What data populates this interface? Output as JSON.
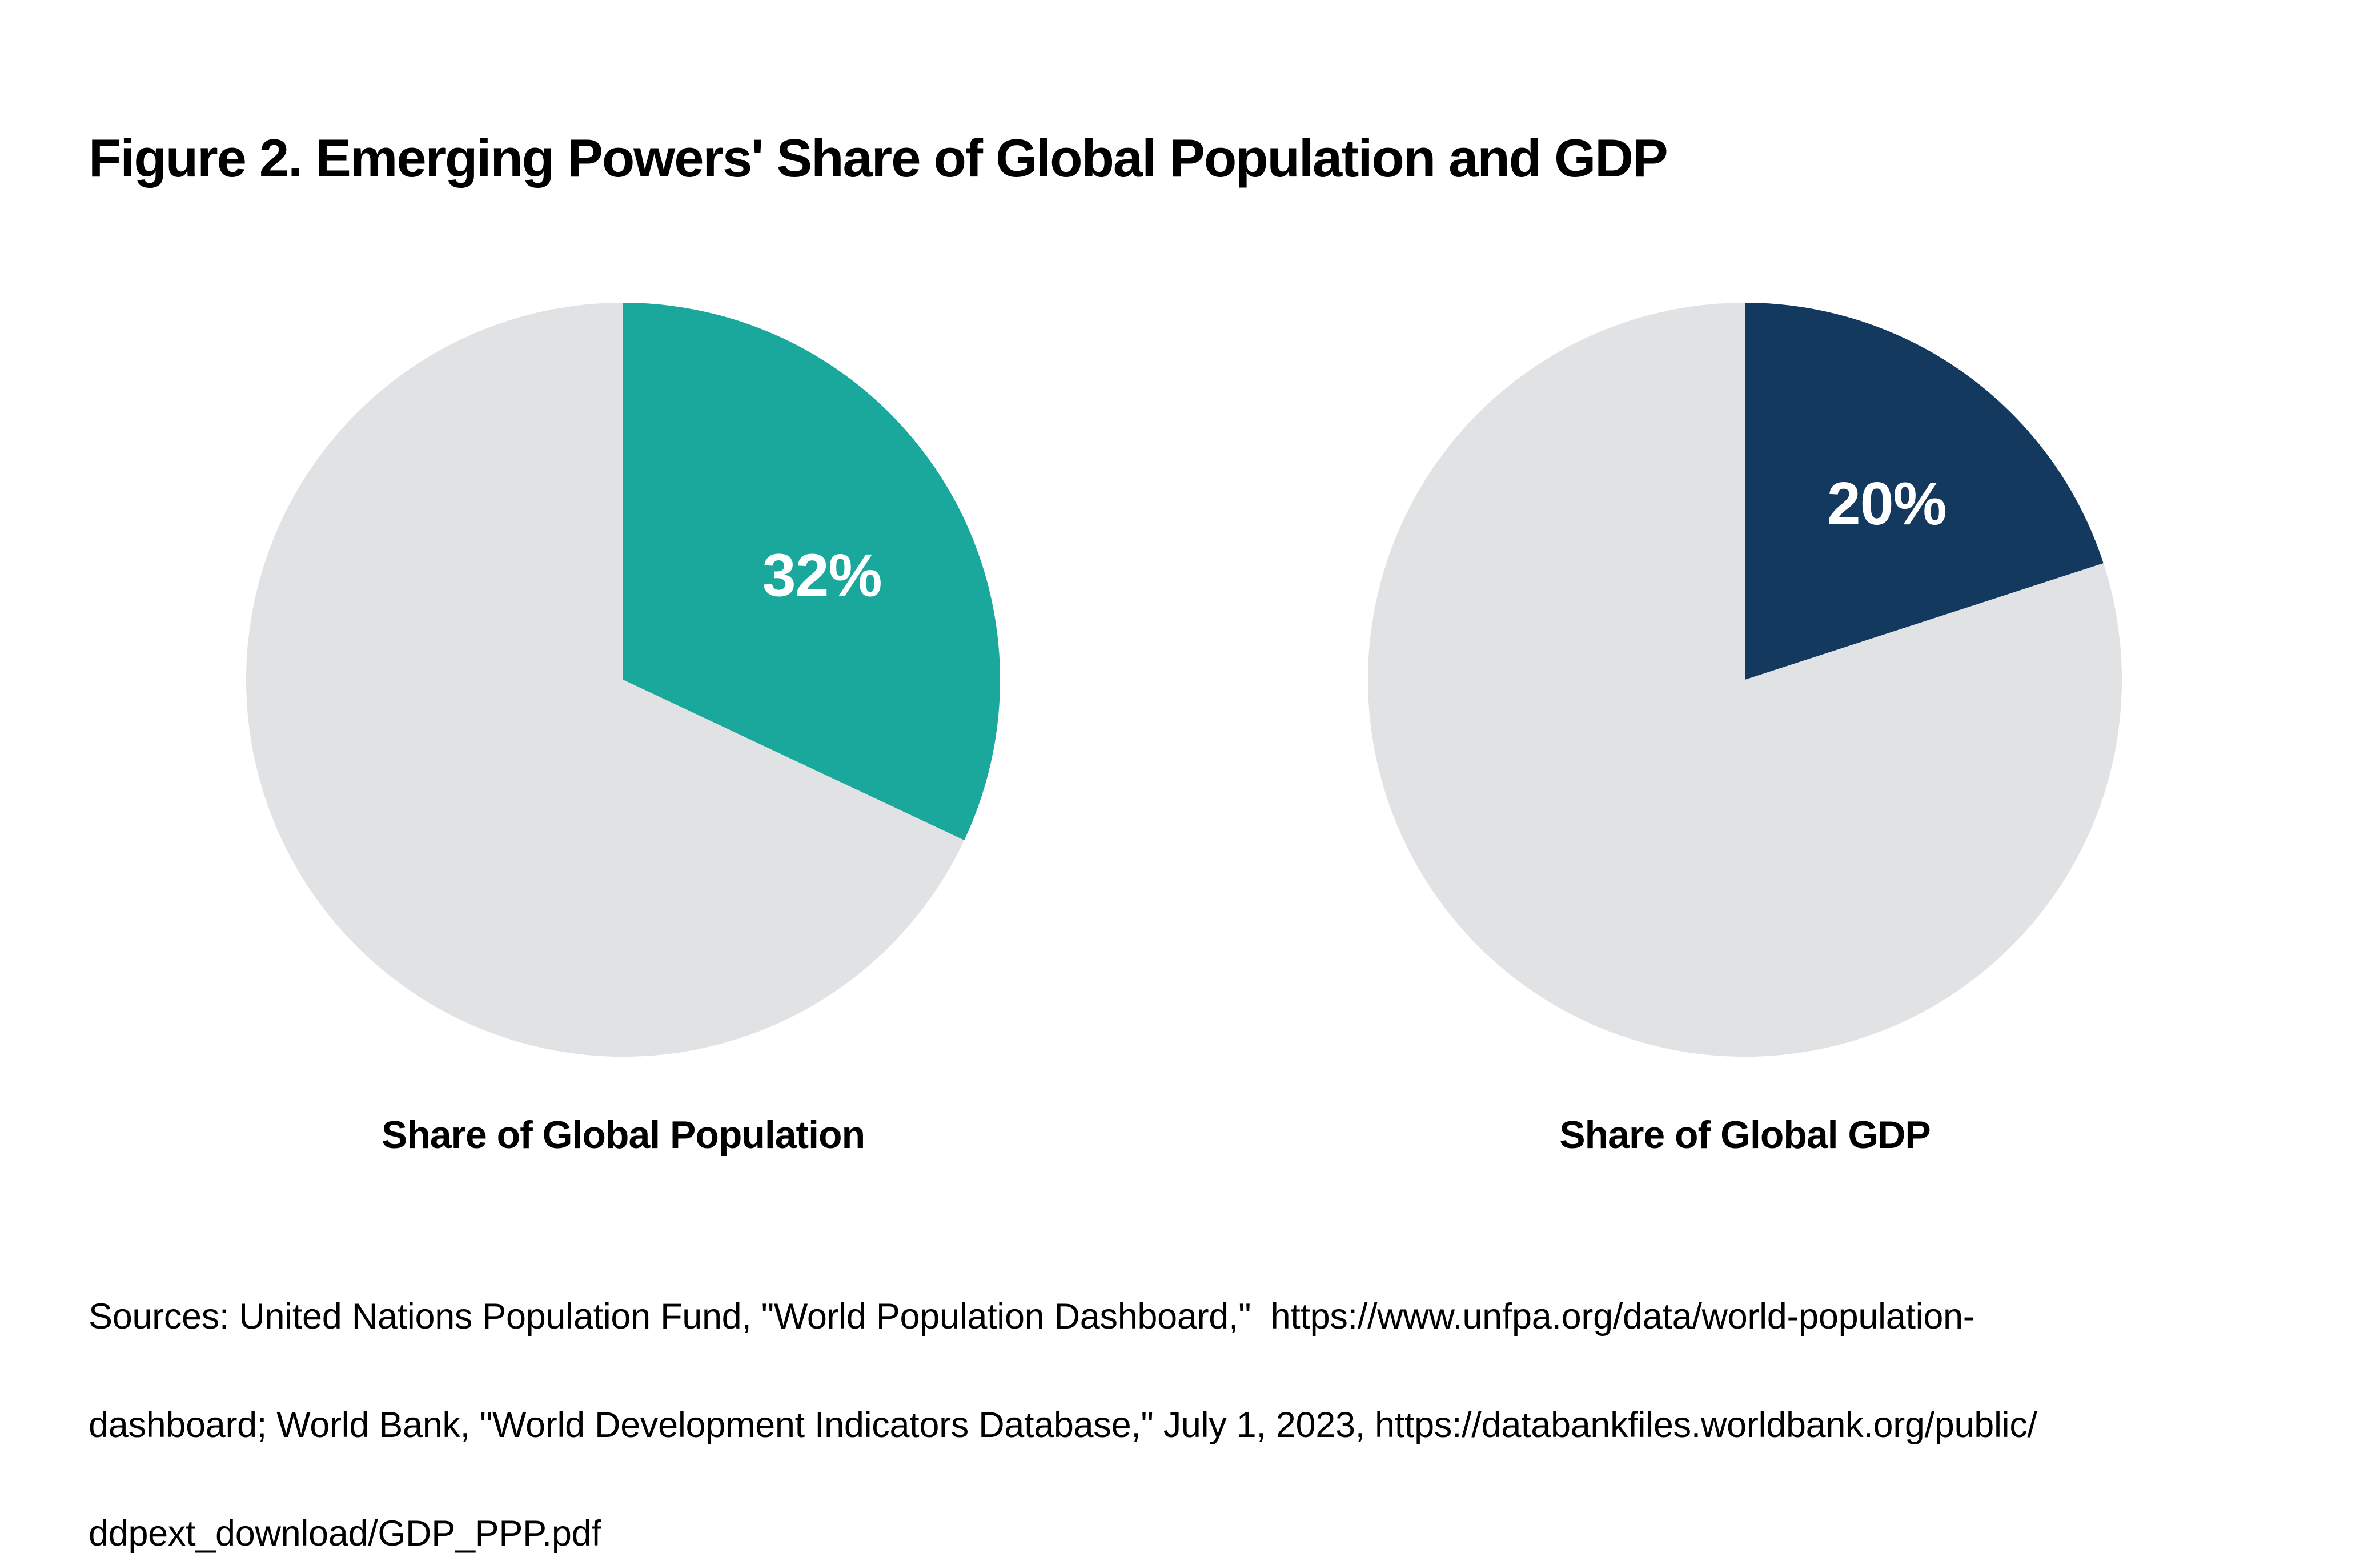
{
  "title": "Figure 2. Emerging Powers' Share of Global Population and GDP",
  "colors": {
    "highlight_teal": "#1AA89C",
    "highlight_navy": "#14395F",
    "remainder_gray": "#E1E2E3",
    "slice_label_white": "#FFFFFF",
    "text_black": "#000000",
    "background": "#FFFFFF"
  },
  "chart_data": [
    {
      "type": "pie",
      "title": "Share of Global Population",
      "segments": [
        {
          "value": 32,
          "label": "32%",
          "color": "#1AA89C"
        },
        {
          "value": 68,
          "label": "",
          "color": "#E1E2E3"
        }
      ],
      "unit": "%",
      "start_angle": "12 o'clock",
      "direction": "clockwise",
      "legend": "none",
      "slice_label": "32%",
      "slice_label_color": "#FFFFFF"
    },
    {
      "type": "pie",
      "title": "Share of Global GDP",
      "segments": [
        {
          "value": 20,
          "label": "20%",
          "color": "#14395F"
        },
        {
          "value": 80,
          "label": "",
          "color": "#E1E2E3"
        }
      ],
      "unit": "%",
      "start_angle": "12 o'clock",
      "direction": "clockwise",
      "legend": "none",
      "slice_label": "20%",
      "slice_label_color": "#FFFFFF"
    }
  ],
  "source_note": {
    "lines": [
      "Sources: United Nations Population Fund, \"World Population Dashboard,\"  https://www.unfpa.org/data/world-population-",
      "dashboard; World Bank, \"World Development Indicators Database,\" July 1, 2023, https://databankfiles.worldbank.org/public/",
      "ddpext_download/GDP_PPP.pdf"
    ]
  }
}
